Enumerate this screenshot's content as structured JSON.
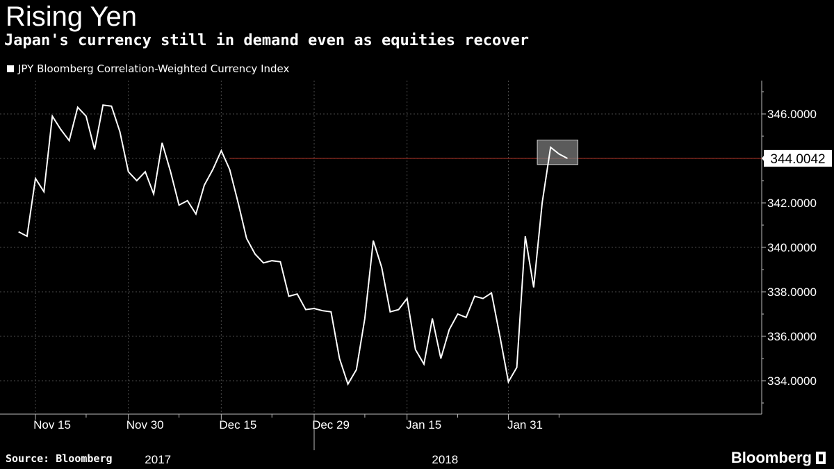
{
  "header": {
    "title": "Rising Yen",
    "subtitle": "Japan's currency still in demand even as equities recover"
  },
  "footer": {
    "source": "Source: Bloomberg",
    "brand": "Bloomberg"
  },
  "colors": {
    "background": "#000000",
    "line": "#ffffff",
    "grid": "#4a4a4a",
    "reference_line": "#c0392b",
    "highlight_box": "#7a7a7a"
  },
  "chart_data": {
    "type": "line",
    "title": "Rising Yen",
    "subtitle": "Japan's currency still in demand even as equities recover",
    "legend": [
      "JPY Bloomberg Correlation-Weighted Currency Index"
    ],
    "legend_position": "top-left",
    "ylim": [
      332.5,
      347.5
    ],
    "yticks": [
      334,
      336,
      338,
      340,
      342,
      344,
      346
    ],
    "ytick_labels": [
      "334.0000",
      "336.0000",
      "338.0000",
      "340.0000",
      "342.0000",
      "344.0000",
      "346.0000"
    ],
    "xlim": [
      -2.2,
      88
    ],
    "xticks": [
      {
        "index": 2,
        "label": "Nov 15"
      },
      {
        "index": 13,
        "label": "Nov 30"
      },
      {
        "index": 24,
        "label": "Dec 15"
      },
      {
        "index": 35,
        "label": "Dec 29"
      },
      {
        "index": 46,
        "label": "Jan 15"
      },
      {
        "index": 58,
        "label": "Jan 31"
      }
    ],
    "minor_ticks": [
      8,
      19,
      30,
      41,
      52,
      64
    ],
    "year_labels": [
      {
        "label": "2017",
        "center": 16.5
      },
      {
        "label": "2018",
        "center": 50.5
      }
    ],
    "year_divider": 35,
    "grid": true,
    "series": [
      {
        "name": "JPY Bloomberg Correlation-Weighted Currency Index",
        "values": [
          340.7,
          340.5,
          343.1,
          342.5,
          345.9,
          345.3,
          344.8,
          346.3,
          345.9,
          344.4,
          346.4,
          346.35,
          345.2,
          343.4,
          343.0,
          343.4,
          342.4,
          344.7,
          343.4,
          341.9,
          342.1,
          341.5,
          342.8,
          343.5,
          344.35,
          343.5,
          342.0,
          340.4,
          339.7,
          339.3,
          339.4,
          339.35,
          337.8,
          337.9,
          337.2,
          337.25,
          337.15,
          337.1,
          335.0,
          333.85,
          334.5,
          336.8,
          340.3,
          339.1,
          337.1,
          337.2,
          337.7,
          335.4,
          334.75,
          336.8,
          335.0,
          336.3,
          337.0,
          336.85,
          337.8,
          337.7,
          337.95,
          336.0,
          333.95,
          334.6,
          340.5,
          338.2,
          342.0,
          344.5,
          344.2,
          344.0
        ]
      }
    ],
    "reference_line": {
      "value": 344.0042,
      "from_index": 25
    },
    "last_value_label": "344.0042"
  }
}
